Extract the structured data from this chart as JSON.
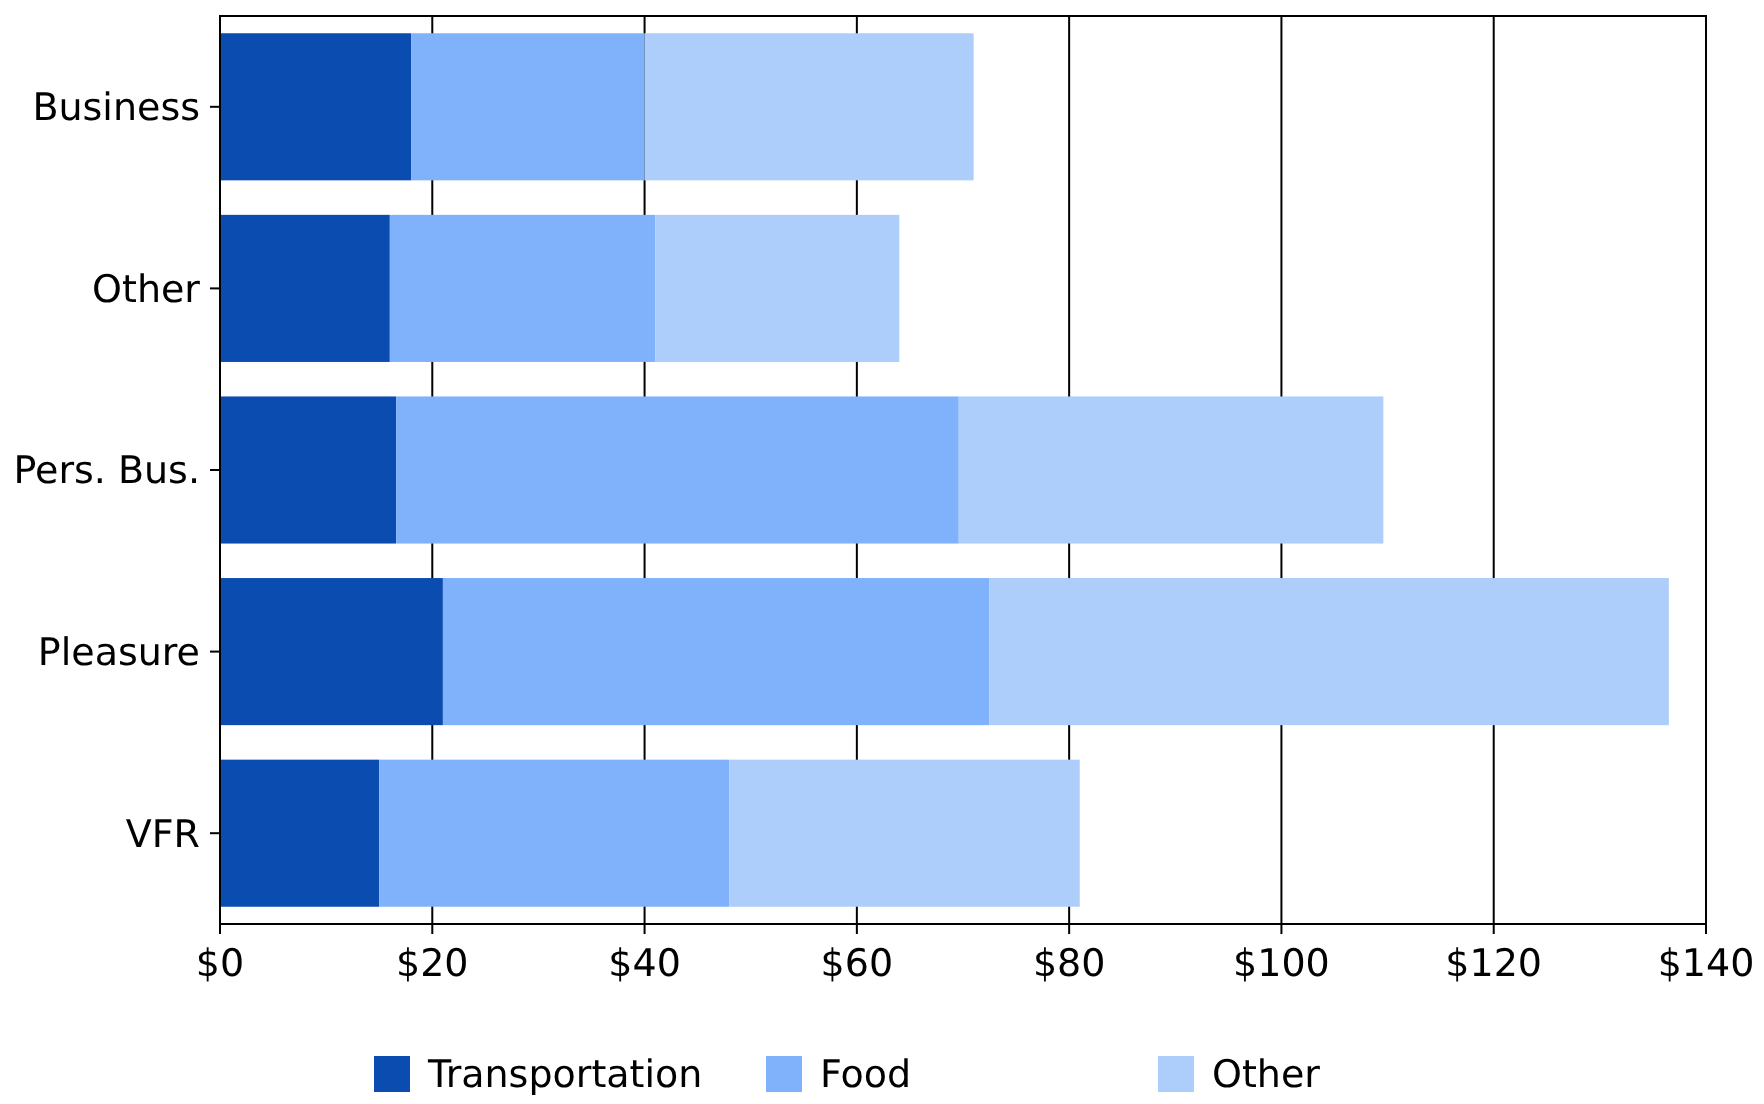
{
  "chart_data": {
    "type": "bar",
    "orientation": "horizontal",
    "stacked": true,
    "categories": [
      "Business",
      "Other",
      "Pers. Bus.",
      "Pleasure",
      "VFR"
    ],
    "series": [
      {
        "name": "Transportation",
        "color": "#0a4cb0",
        "values": [
          18,
          16,
          16.6,
          21,
          15
        ]
      },
      {
        "name": "Food",
        "color": "#7fb2fb",
        "values": [
          22,
          25,
          53,
          51.5,
          33
        ]
      },
      {
        "name": "Other",
        "color": "#adcdfb",
        "values": [
          31,
          23,
          40,
          64,
          33
        ]
      }
    ],
    "xlim": [
      0,
      140
    ],
    "xticks": [
      {
        "value": 0,
        "label": "$0"
      },
      {
        "value": 20,
        "label": "$20"
      },
      {
        "value": 40,
        "label": "$40"
      },
      {
        "value": 60,
        "label": "$60"
      },
      {
        "value": 80,
        "label": "$80"
      },
      {
        "value": 100,
        "label": "$100"
      },
      {
        "value": 120,
        "label": "$120"
      },
      {
        "value": 140,
        "label": "$140"
      }
    ],
    "grid": "x",
    "legend": "bottom"
  }
}
